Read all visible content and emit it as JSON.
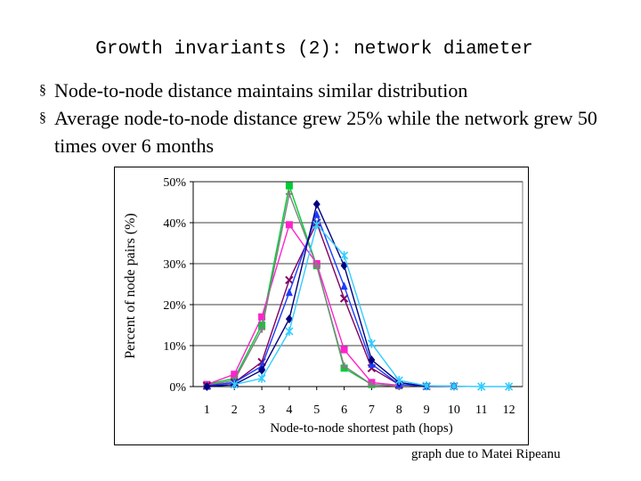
{
  "slide": {
    "title": "Growth invariants (2): network diameter",
    "bullets": [
      "Node-to-node distance maintains similar distribution",
      "Average node-to-node distance grew 25% while the network grew 50 times over 6 months"
    ],
    "bullet_marker": "§",
    "credit": "graph due to Matei Ripeanu"
  },
  "chart_data": {
    "type": "line",
    "title": "",
    "xlabel": "Node-to-node shortest path (hops)",
    "ylabel": "Percent of node pairs (%)",
    "x": [
      1,
      2,
      3,
      4,
      5,
      6,
      7,
      8,
      9,
      10,
      11,
      12
    ],
    "xlim": [
      0.5,
      12.5
    ],
    "ylim": [
      0,
      50
    ],
    "yticks": [
      "0%",
      "10%",
      "20%",
      "30%",
      "40%",
      "50%"
    ],
    "grid": "horizontal",
    "legend": "none",
    "series": [
      {
        "color": "#00cc33",
        "marker": "square",
        "values": [
          0.5,
          2.0,
          15.0,
          49.0,
          29.5,
          4.5,
          0.5,
          0.2,
          null,
          null,
          null,
          null
        ]
      },
      {
        "color": "#ff22cc",
        "marker": "square",
        "values": [
          0.5,
          3.0,
          17.0,
          39.5,
          30.0,
          9.0,
          1.0,
          0.3,
          null,
          null,
          null,
          null
        ]
      },
      {
        "color": "#808080",
        "marker": "plus",
        "values": [
          0.3,
          1.5,
          14.0,
          47.0,
          29.5,
          5.0,
          0.5,
          0.1,
          null,
          null,
          null,
          null
        ]
      },
      {
        "color": "#800060",
        "marker": "x",
        "values": [
          0.2,
          1.0,
          6.0,
          26.0,
          40.0,
          21.5,
          4.5,
          0.5,
          0.1,
          0.1,
          null,
          null
        ]
      },
      {
        "color": "#1a3cff",
        "marker": "triangle",
        "values": [
          0.1,
          1.0,
          5.0,
          23.0,
          42.0,
          24.5,
          5.5,
          0.5,
          0.1,
          null,
          null,
          null
        ]
      },
      {
        "color": "#000080",
        "marker": "diamond",
        "values": [
          0.0,
          0.5,
          4.0,
          16.5,
          44.5,
          29.5,
          6.5,
          1.0,
          0.1,
          0.1,
          null,
          null
        ]
      },
      {
        "color": "#33ccff",
        "marker": "star",
        "values": [
          null,
          0.5,
          2.0,
          13.5,
          39.5,
          32.0,
          10.5,
          1.5,
          0.2,
          0.1,
          0.0,
          0.0
        ]
      }
    ]
  }
}
